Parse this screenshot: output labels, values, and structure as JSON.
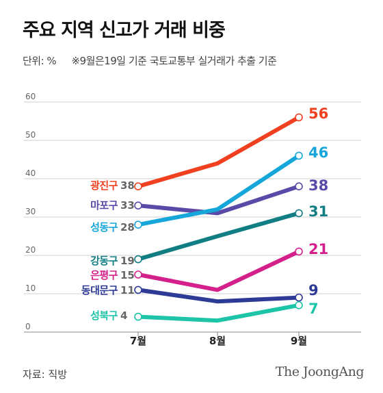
{
  "header": {
    "title": "주요 지역 신고가 거래 비중",
    "unit": "단위: %",
    "note": "※9월은19일 기준 국토교통부 실거래가 추출 기준"
  },
  "footer": {
    "source": "자료: 직방",
    "brand": "The JoongAng"
  },
  "chart_data": {
    "type": "line",
    "title": "주요 지역 신고가 거래 비중",
    "x": [
      "7월",
      "8월",
      "9월"
    ],
    "ylim": [
      0,
      60
    ],
    "yticks": [
      0,
      10,
      20,
      30,
      40,
      50,
      60
    ],
    "grid": true,
    "series": [
      {
        "name": "광진구",
        "values": [
          38,
          44,
          56
        ],
        "color": "#f0401f"
      },
      {
        "name": "마포구",
        "values": [
          33,
          31,
          38
        ],
        "color": "#5b49a8"
      },
      {
        "name": "성동구",
        "values": [
          28,
          32,
          46
        ],
        "color": "#16a6d9"
      },
      {
        "name": "강동구",
        "values": [
          19,
          25,
          31
        ],
        "color": "#117e84"
      },
      {
        "name": "은평구",
        "values": [
          15,
          11,
          21
        ],
        "color": "#d4208a"
      },
      {
        "name": "동대문구",
        "values": [
          11,
          8,
          9
        ],
        "color": "#2e3b96"
      },
      {
        "name": "성북구",
        "values": [
          4,
          3,
          7
        ],
        "color": "#1ec4a8"
      }
    ]
  }
}
